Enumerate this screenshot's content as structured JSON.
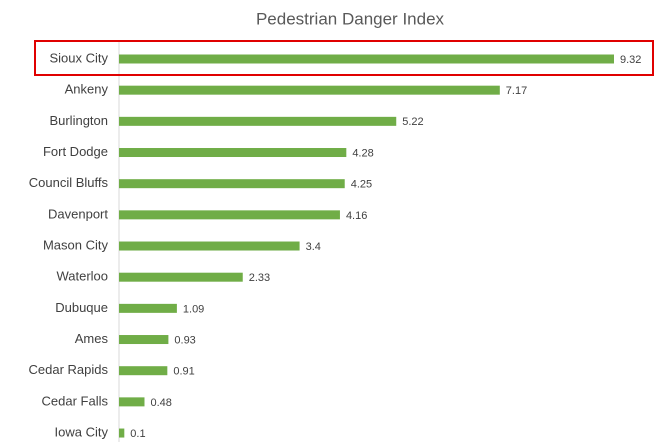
{
  "chart_data": {
    "type": "bar",
    "orientation": "horizontal",
    "title": "Pedestrian Danger Index",
    "categories": [
      "Sioux City",
      "Ankeny",
      "Burlington",
      "Fort Dodge",
      "Council Bluffs",
      "Davenport",
      "Mason City",
      "Waterloo",
      "Dubuque",
      "Ames",
      "Cedar Rapids",
      "Cedar Falls",
      "Iowa City"
    ],
    "values": [
      9.32,
      7.17,
      5.22,
      4.28,
      4.25,
      4.16,
      3.4,
      2.33,
      1.09,
      0.93,
      0.91,
      0.48,
      0.1
    ],
    "color": "#70ad47"
  }
}
